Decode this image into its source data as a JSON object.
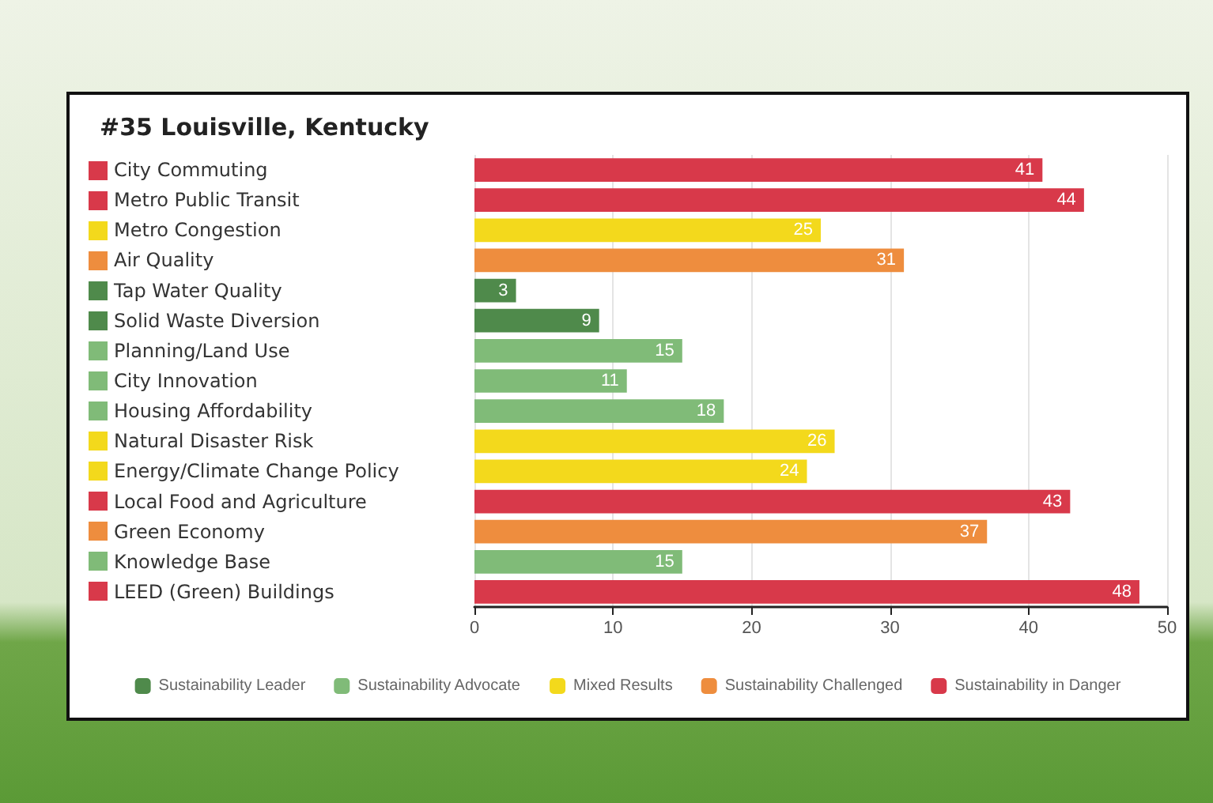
{
  "chart_data": {
    "type": "bar",
    "orientation": "horizontal",
    "stacked": true,
    "title": "#35 Louisville, Kentucky",
    "categories": [
      "City Commuting",
      "Metro Public Transit",
      "Metro Congestion",
      "Air Quality",
      "Tap Water Quality",
      "Solid Waste Diversion",
      "Planning/Land Use",
      "City Innovation",
      "Housing Affordability",
      "Natural Disaster Risk",
      "Energy/Climate Change Policy",
      "Local Food and Agriculture",
      "Green Economy",
      "Knowledge Base",
      "LEED (Green) Buildings"
    ],
    "series": [
      {
        "name": "Sustainability Leader",
        "color": "#4f8a4b",
        "values": [
          null,
          null,
          null,
          null,
          3,
          9,
          null,
          null,
          null,
          null,
          null,
          null,
          null,
          null,
          null
        ]
      },
      {
        "name": "Sustainability Advocate",
        "color": "#80bb78",
        "values": [
          null,
          null,
          null,
          null,
          null,
          null,
          15,
          11,
          18,
          null,
          null,
          null,
          null,
          15,
          null
        ]
      },
      {
        "name": "Mixed Results",
        "color": "#f3d91c",
        "values": [
          null,
          null,
          25,
          null,
          null,
          null,
          null,
          null,
          null,
          26,
          24,
          null,
          null,
          null,
          null
        ]
      },
      {
        "name": "Sustainability Challenged",
        "color": "#ee8d3e",
        "values": [
          null,
          null,
          null,
          31,
          null,
          null,
          null,
          null,
          null,
          null,
          null,
          null,
          37,
          null,
          null
        ]
      },
      {
        "name": "Sustainability in Danger",
        "color": "#d8394a",
        "values": [
          41,
          44,
          null,
          null,
          null,
          null,
          null,
          null,
          null,
          null,
          null,
          43,
          null,
          null,
          48
        ]
      }
    ],
    "xlim": [
      0,
      50
    ],
    "xticks": [
      0,
      10,
      20,
      30,
      40,
      50
    ],
    "grid": "x",
    "legend": "bottom",
    "data_labels": true
  }
}
